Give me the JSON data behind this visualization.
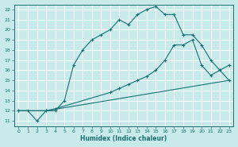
{
  "xlabel": "Humidex (Indice chaleur)",
  "bg_color": "#c8eaea",
  "grid_color": "#ffffff",
  "line_color": "#1a7070",
  "xlim": [
    -0.5,
    23.5
  ],
  "ylim": [
    10.5,
    22.5
  ],
  "xticks": [
    0,
    1,
    2,
    3,
    4,
    5,
    6,
    7,
    8,
    9,
    10,
    11,
    12,
    13,
    14,
    15,
    16,
    17,
    18,
    19,
    20,
    21,
    22,
    23
  ],
  "yticks": [
    11,
    12,
    13,
    14,
    15,
    16,
    17,
    18,
    19,
    20,
    21,
    22
  ],
  "curve1_x": [
    0,
    1,
    2,
    3,
    4,
    5,
    6,
    7,
    8,
    9,
    10,
    11,
    12,
    13,
    14,
    15,
    16,
    17,
    18,
    19,
    20,
    21,
    22,
    23
  ],
  "curve1_y": [
    12,
    12,
    11,
    12,
    12,
    13,
    16.5,
    18,
    19,
    19.5,
    20,
    21,
    20.5,
    21.5,
    22,
    22.3,
    21.5,
    21.5,
    19.5,
    19.5,
    18.5,
    17,
    16,
    15
  ],
  "curve2_x": [
    0,
    3,
    4,
    10,
    11,
    12,
    13,
    14,
    15,
    16,
    17,
    18,
    19,
    20,
    21,
    23
  ],
  "curve2_y": [
    12,
    12,
    12.2,
    13.8,
    14.2,
    14.6,
    15.0,
    15.4,
    16.0,
    17.0,
    18.5,
    18.5,
    19.0,
    16.5,
    15.5,
    16.5
  ],
  "curve3_x": [
    0,
    3,
    23
  ],
  "curve3_y": [
    12,
    12,
    15
  ]
}
